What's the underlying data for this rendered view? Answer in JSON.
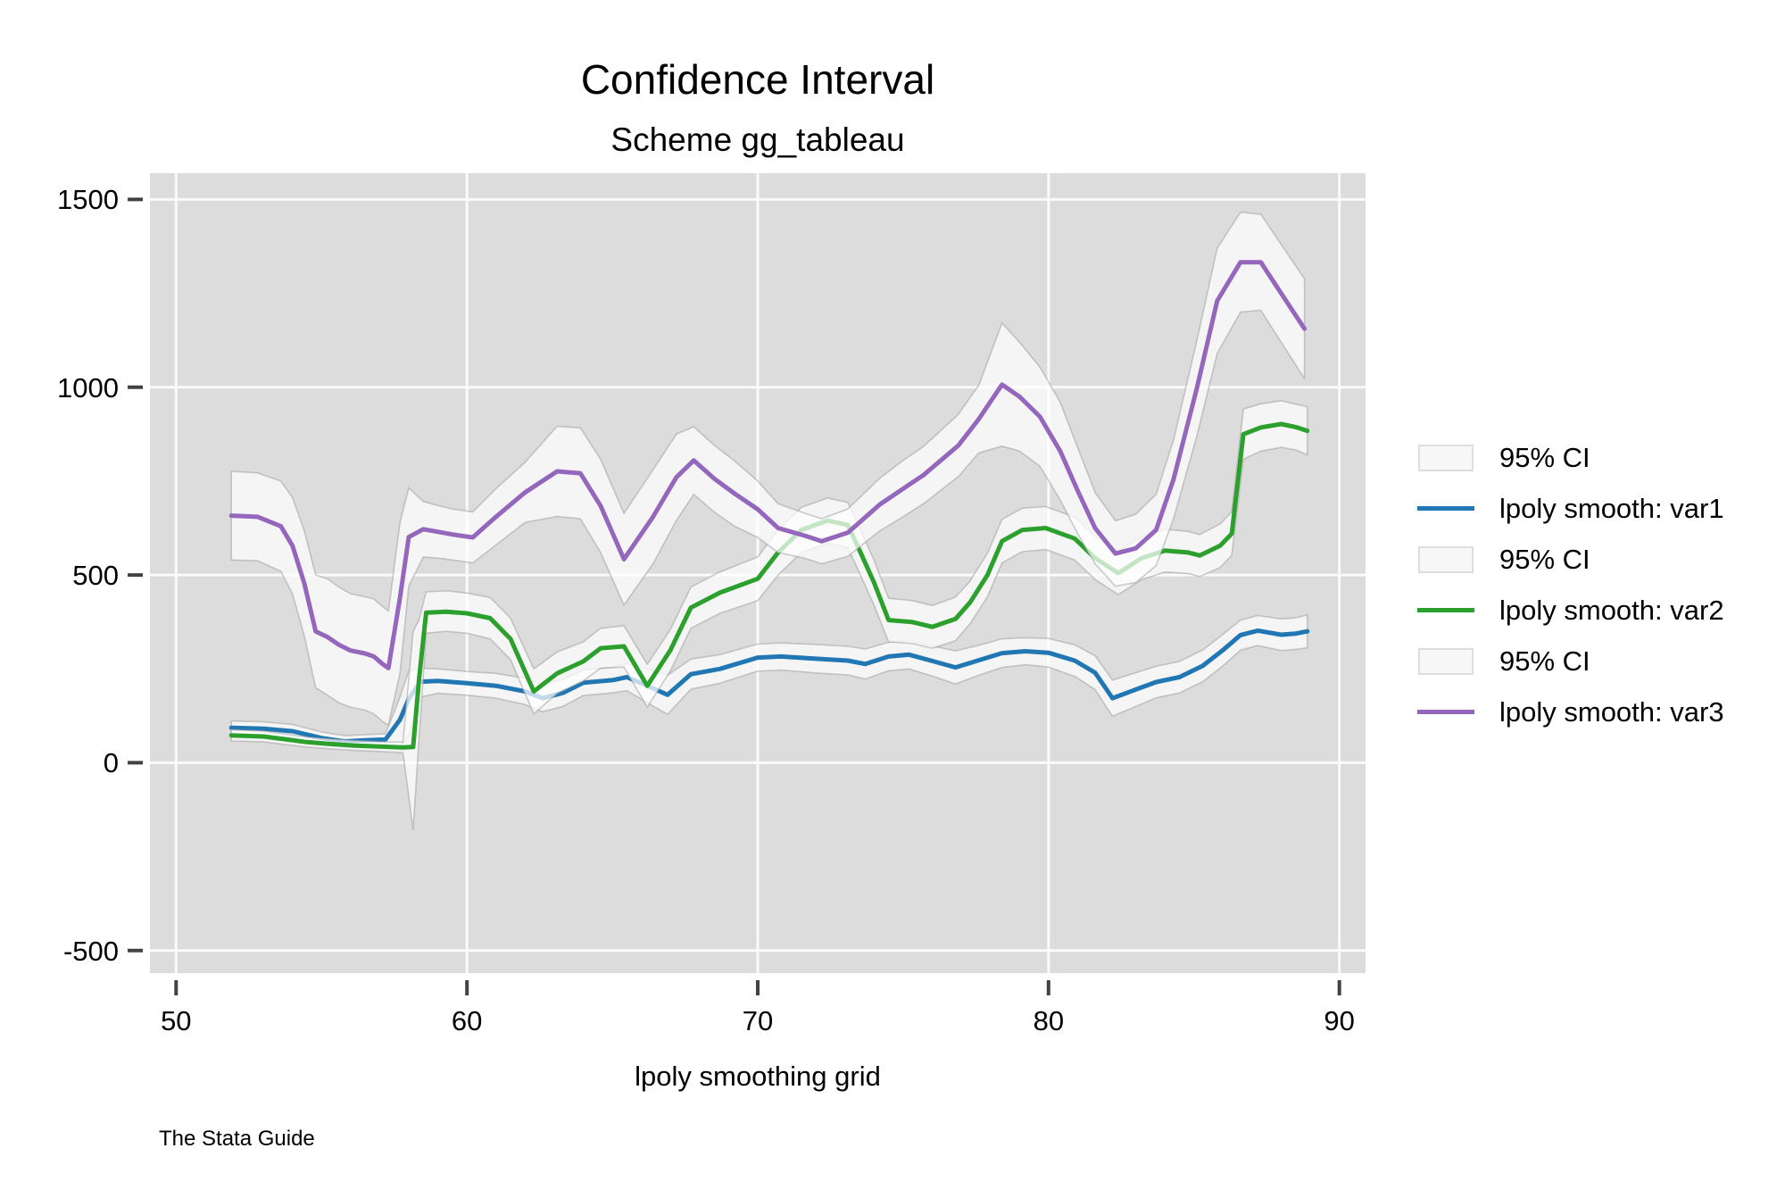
{
  "title": "Confidence Interval",
  "subtitle": "Scheme gg_tableau",
  "caption": "The Stata Guide",
  "xlabel": "lpoly smoothing grid",
  "colors": {
    "plot_bg": "#dcdcdc",
    "gridline": "#fafafa",
    "tick": "#424242",
    "text": "#000000",
    "ci_fill": "rgba(255,255,255,0.72)",
    "ci_edge": "rgba(160,160,160,0.55)",
    "var1": "#2077b4",
    "var2": "#2ca02c",
    "var3": "#9467bd"
  },
  "legend": {
    "items": [
      {
        "kind": "ci",
        "label": "95% CI"
      },
      {
        "kind": "line",
        "label": "lpoly smooth: var1",
        "color": "#2077b4"
      },
      {
        "kind": "ci",
        "label": "95% CI"
      },
      {
        "kind": "line",
        "label": "lpoly smooth: var2",
        "color": "#2ca02c"
      },
      {
        "kind": "ci",
        "label": "95% CI"
      },
      {
        "kind": "line",
        "label": "lpoly smooth: var3",
        "color": "#9467bd"
      }
    ]
  },
  "chart_data": {
    "type": "line",
    "title": "Confidence Interval",
    "subtitle": "Scheme gg_tableau",
    "xlabel": "lpoly smoothing grid",
    "ylabel": "",
    "xlim": [
      49.1,
      90.9
    ],
    "ylim": [
      -560,
      1570
    ],
    "xticks": [
      50,
      60,
      70,
      80,
      90
    ],
    "yticks": [
      -500,
      0,
      500,
      1000,
      1500
    ],
    "grid": true,
    "legend_position": "right",
    "note": "each series point is [x, value, ci_lower, ci_upper]; shaded band is the 95% CI",
    "series": [
      {
        "name": "lpoly smooth: var1",
        "variable": "var1",
        "color": "#2077b4",
        "ci_label": "95% CI",
        "points": [
          [
            51.9,
            93,
            75,
            111
          ],
          [
            53,
            91,
            73,
            109
          ],
          [
            54,
            84,
            66,
            102
          ],
          [
            55,
            66,
            50,
            82
          ],
          [
            55.8,
            57,
            42,
            72
          ],
          [
            56.5,
            60,
            45,
            75
          ],
          [
            57.2,
            62,
            47,
            77
          ],
          [
            57.7,
            115,
            45,
            175
          ],
          [
            58.0,
            170,
            75,
            245
          ],
          [
            58.4,
            216,
            175,
            252
          ],
          [
            59,
            218,
            185,
            250
          ],
          [
            60,
            212,
            180,
            243
          ],
          [
            61,
            205,
            172,
            238
          ],
          [
            62,
            190,
            155,
            225
          ],
          [
            62.6,
            172,
            136,
            208
          ],
          [
            63.3,
            186,
            150,
            222
          ],
          [
            64,
            213,
            179,
            247
          ],
          [
            65,
            220,
            186,
            254
          ],
          [
            65.5,
            228,
            192,
            264
          ],
          [
            66.2,
            205,
            160,
            250
          ],
          [
            66.9,
            181,
            129,
            233
          ],
          [
            67.7,
            236,
            196,
            276
          ],
          [
            68.7,
            250,
            212,
            288
          ],
          [
            70,
            280,
            244,
            316
          ],
          [
            70.8,
            283,
            247,
            319
          ],
          [
            72,
            277,
            239,
            315
          ],
          [
            73.1,
            272,
            234,
            310
          ],
          [
            73.7,
            263,
            223,
            303
          ],
          [
            74.5,
            283,
            245,
            321
          ],
          [
            75.2,
            288,
            250,
            326
          ],
          [
            76,
            271,
            231,
            311
          ],
          [
            76.8,
            254,
            210,
            298
          ],
          [
            77.6,
            273,
            233,
            313
          ],
          [
            78.4,
            292,
            254,
            330
          ],
          [
            79.2,
            297,
            261,
            333
          ],
          [
            80,
            293,
            255,
            331
          ],
          [
            80.9,
            272,
            230,
            314
          ],
          [
            81.6,
            240,
            195,
            285
          ],
          [
            82.2,
            172,
            124,
            220
          ],
          [
            83,
            195,
            150,
            240
          ],
          [
            83.7,
            215,
            173,
            257
          ],
          [
            84.5,
            228,
            186,
            270
          ],
          [
            85.3,
            258,
            216,
            300
          ],
          [
            86,
            300,
            258,
            342
          ],
          [
            86.6,
            340,
            300,
            380
          ],
          [
            87.2,
            352,
            312,
            392
          ],
          [
            88,
            341,
            299,
            383
          ],
          [
            88.5,
            344,
            302,
            386
          ],
          [
            88.9,
            350,
            306,
            394
          ]
        ]
      },
      {
        "name": "lpoly smooth: var2",
        "variable": "var2",
        "color": "#2ca02c",
        "ci_label": "95% CI",
        "points": [
          [
            51.9,
            73,
            58,
            88
          ],
          [
            53,
            70,
            56,
            84
          ],
          [
            53.7,
            63,
            49,
            77
          ],
          [
            54.5,
            55,
            42,
            68
          ],
          [
            55.3,
            50,
            37,
            63
          ],
          [
            56.1,
            46,
            33,
            59
          ],
          [
            57,
            43,
            30,
            56
          ],
          [
            57.8,
            41,
            27,
            55
          ],
          [
            58.15,
            42,
            -178,
            350
          ],
          [
            58.35,
            220,
            60,
            380
          ],
          [
            58.6,
            400,
            345,
            455
          ],
          [
            59.3,
            402,
            350,
            458
          ],
          [
            60,
            398,
            345,
            452
          ],
          [
            60.8,
            385,
            330,
            440
          ],
          [
            61.5,
            330,
            275,
            385
          ],
          [
            62.3,
            190,
            130,
            250
          ],
          [
            63.1,
            238,
            185,
            295
          ],
          [
            64,
            270,
            218,
            322
          ],
          [
            64.6,
            305,
            252,
            358
          ],
          [
            65.4,
            310,
            255,
            365
          ],
          [
            66.2,
            205,
            148,
            262
          ],
          [
            67,
            300,
            245,
            355
          ],
          [
            67.7,
            413,
            358,
            468
          ],
          [
            68.7,
            453,
            398,
            508
          ],
          [
            70,
            490,
            432,
            548
          ],
          [
            70.7,
            560,
            500,
            620
          ],
          [
            71.5,
            620,
            560,
            680
          ],
          [
            72.4,
            645,
            585,
            705
          ],
          [
            73.1,
            633,
            573,
            693
          ],
          [
            73.5,
            566,
            506,
            626
          ],
          [
            74,
            480,
            420,
            540
          ],
          [
            74.5,
            380,
            322,
            438
          ],
          [
            75.3,
            375,
            318,
            432
          ],
          [
            76,
            362,
            305,
            419
          ],
          [
            76.8,
            383,
            325,
            441
          ],
          [
            77.3,
            427,
            370,
            484
          ],
          [
            77.9,
            500,
            442,
            558
          ],
          [
            78.4,
            590,
            532,
            648
          ],
          [
            79.1,
            620,
            562,
            678
          ],
          [
            79.9,
            625,
            568,
            682
          ],
          [
            80.9,
            597,
            540,
            654
          ],
          [
            81.6,
            545,
            488,
            602
          ],
          [
            82.4,
            505,
            448,
            562
          ],
          [
            83.2,
            545,
            488,
            602
          ],
          [
            84,
            565,
            508,
            622
          ],
          [
            84.8,
            560,
            504,
            616
          ],
          [
            85.2,
            552,
            496,
            608
          ],
          [
            85.9,
            578,
            520,
            636
          ],
          [
            86.3,
            610,
            552,
            668
          ],
          [
            86.7,
            875,
            808,
            942
          ],
          [
            87.3,
            893,
            830,
            956
          ],
          [
            88,
            902,
            840,
            964
          ],
          [
            88.5,
            894,
            833,
            955
          ],
          [
            88.9,
            884,
            820,
            948
          ]
        ]
      },
      {
        "name": "lpoly smooth: var3",
        "variable": "var3",
        "color": "#9467bd",
        "ci_label": "95% CI",
        "points": [
          [
            51.9,
            658,
            540,
            776
          ],
          [
            52.8,
            655,
            538,
            772
          ],
          [
            53.6,
            630,
            510,
            750
          ],
          [
            54.0,
            578,
            450,
            706
          ],
          [
            54.4,
            480,
            340,
            620
          ],
          [
            54.8,
            350,
            200,
            500
          ],
          [
            55.2,
            335,
            180,
            490
          ],
          [
            55.6,
            314,
            160,
            468
          ],
          [
            56,
            299,
            148,
            450
          ],
          [
            56.5,
            291,
            140,
            442
          ],
          [
            56.8,
            283,
            130,
            436
          ],
          [
            57.1,
            263,
            110,
            416
          ],
          [
            57.3,
            252,
            100,
            404
          ],
          [
            57.7,
            440,
            240,
            640
          ],
          [
            58,
            601,
            470,
            732
          ],
          [
            58.5,
            622,
            548,
            696
          ],
          [
            59,
            615,
            545,
            685
          ],
          [
            59.5,
            608,
            540,
            676
          ],
          [
            60.2,
            600,
            532,
            668
          ],
          [
            61,
            655,
            580,
            730
          ],
          [
            62,
            720,
            640,
            800
          ],
          [
            63.1,
            776,
            656,
            896
          ],
          [
            63.9,
            771,
            650,
            892
          ],
          [
            64.6,
            684,
            560,
            808
          ],
          [
            65.4,
            542,
            420,
            664
          ],
          [
            66.4,
            655,
            530,
            780
          ],
          [
            67.2,
            760,
            645,
            875
          ],
          [
            67.8,
            805,
            715,
            895
          ],
          [
            68.5,
            757,
            668,
            846
          ],
          [
            69.2,
            717,
            630,
            804
          ],
          [
            70,
            675,
            600,
            750
          ],
          [
            70.7,
            625,
            560,
            690
          ],
          [
            71.6,
            605,
            545,
            665
          ],
          [
            72.2,
            590,
            530,
            650
          ],
          [
            73.1,
            613,
            550,
            676
          ],
          [
            74.2,
            688,
            618,
            758
          ],
          [
            75,
            730,
            655,
            805
          ],
          [
            75.7,
            766,
            690,
            842
          ],
          [
            76.9,
            845,
            762,
            928
          ],
          [
            77.6,
            915,
            825,
            1005
          ],
          [
            78.4,
            1007,
            843,
            1171
          ],
          [
            79,
            975,
            830,
            1120
          ],
          [
            79.7,
            922,
            790,
            1054
          ],
          [
            80.4,
            830,
            700,
            960
          ],
          [
            81,
            725,
            610,
            840
          ],
          [
            81.6,
            625,
            530,
            720
          ],
          [
            82.3,
            557,
            470,
            644
          ],
          [
            83,
            571,
            480,
            662
          ],
          [
            83.7,
            620,
            525,
            715
          ],
          [
            84.3,
            755,
            650,
            860
          ],
          [
            85.1,
            997,
            870,
            1124
          ],
          [
            85.8,
            1230,
            1090,
            1370
          ],
          [
            86.6,
            1333,
            1200,
            1466
          ],
          [
            87.3,
            1333,
            1205,
            1461
          ],
          [
            88,
            1250,
            1120,
            1380
          ],
          [
            88.8,
            1156,
            1023,
            1289
          ]
        ]
      }
    ]
  }
}
